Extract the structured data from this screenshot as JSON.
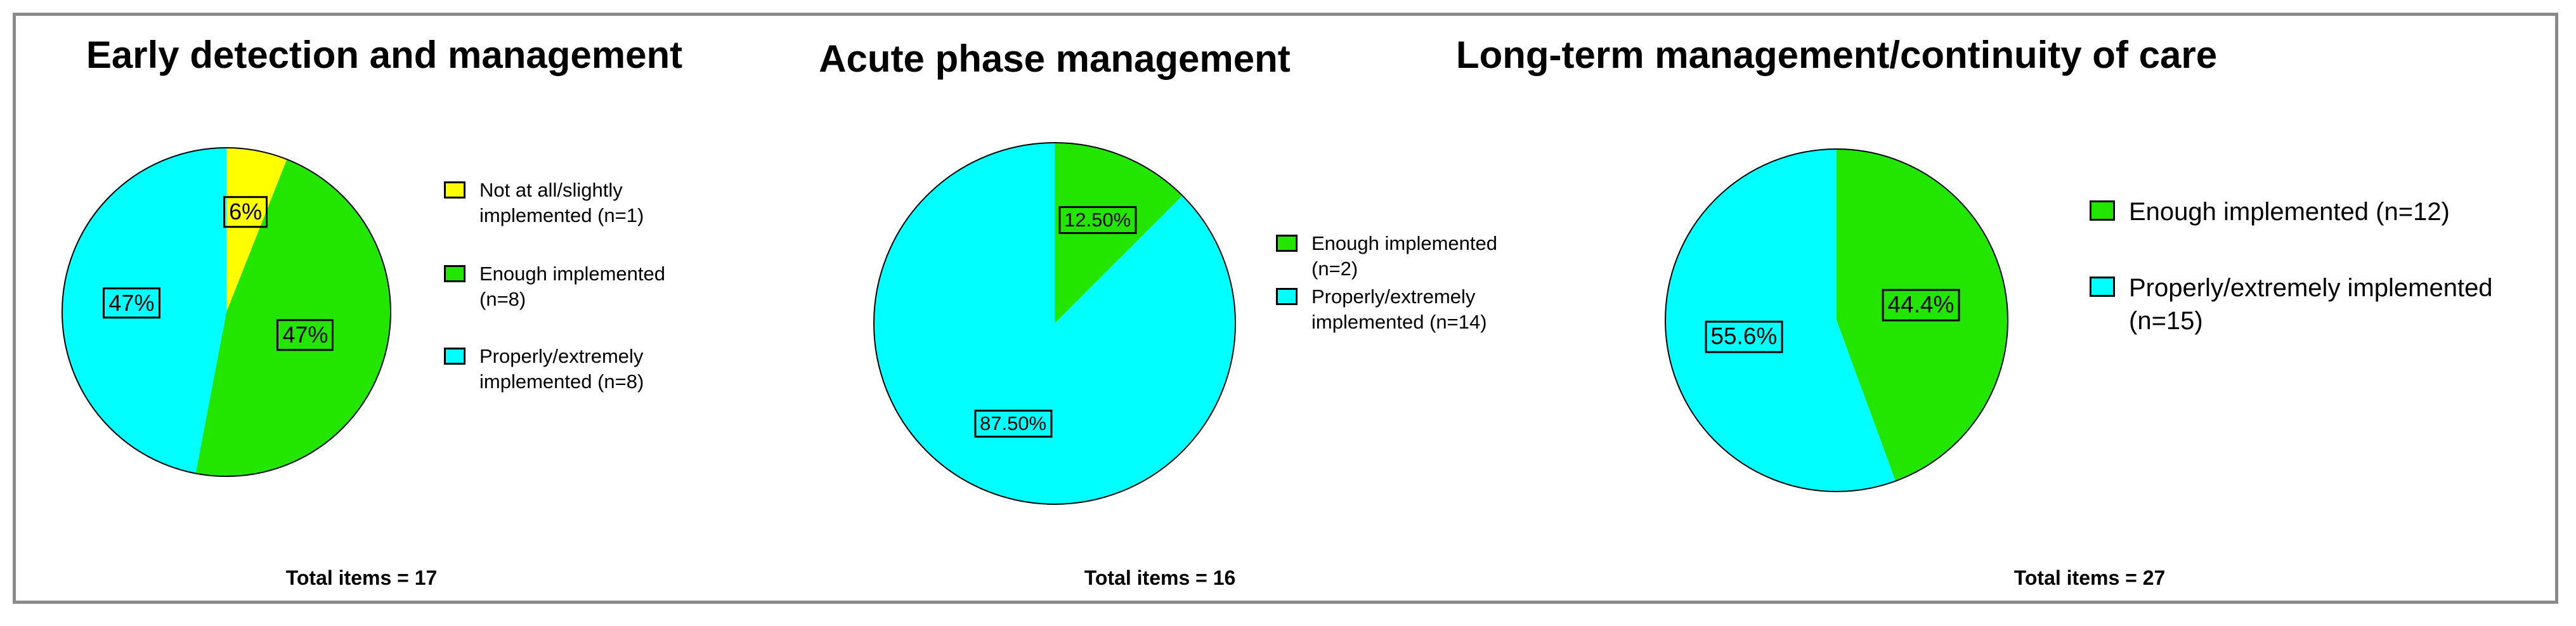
{
  "chart_data": [
    {
      "type": "pie",
      "title": "Early detection and management",
      "categories": [
        "Not at all/slightly implemented (n=1)",
        "Enough implemented (n=8)",
        "Properly/extremely implemented (n=8)"
      ],
      "values": [
        6,
        47,
        47
      ],
      "value_labels": [
        "6%",
        "47%",
        "47%"
      ],
      "colors": [
        "#ffff00",
        "#22e600",
        "#00ffff"
      ],
      "note": "Total items = 17"
    },
    {
      "type": "pie",
      "title": "Acute phase management",
      "categories": [
        "Enough implemented (n=2)",
        "Properly/extremely implemented (n=14)"
      ],
      "values": [
        12.5,
        87.5
      ],
      "value_labels": [
        "12.50%",
        "87.50%"
      ],
      "colors": [
        "#22e600",
        "#00ffff"
      ],
      "note": "Total items = 16"
    },
    {
      "type": "pie",
      "title": "Long-term management/continuity of care",
      "categories": [
        "Enough implemented (n=12)",
        "Properly/extremely implemented (n=15)"
      ],
      "values": [
        44.4,
        55.6
      ],
      "value_labels": [
        "44.4%",
        "55.6%"
      ],
      "colors": [
        "#22e600",
        "#00ffff"
      ],
      "note": "Total items = 27"
    }
  ]
}
